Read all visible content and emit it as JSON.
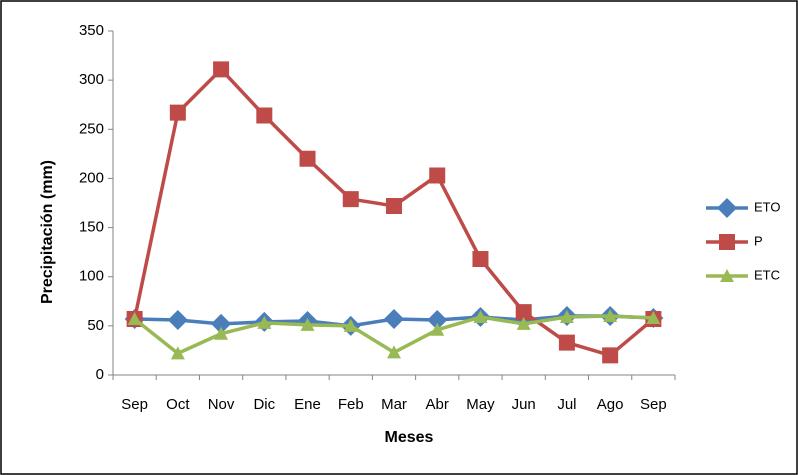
{
  "chart_data": {
    "type": "line",
    "x_label": "Meses",
    "y_label": "Precipitación (mm)",
    "categories": [
      "Sep",
      "Oct",
      "Nov",
      "Dic",
      "Ene",
      "Feb",
      "Mar",
      "Abr",
      "May",
      "Jun",
      "Jul",
      "Ago",
      "Sep"
    ],
    "series": [
      {
        "name": "ETO",
        "color": "#4a7ebb",
        "marker": "diamond",
        "values": [
          57,
          56,
          52,
          54,
          55,
          50,
          57,
          56,
          59,
          56,
          60,
          60,
          58
        ]
      },
      {
        "name": "P",
        "color": "#be4b48",
        "marker": "square",
        "values": [
          57,
          267,
          311,
          264,
          220,
          179,
          172,
          203,
          118,
          64,
          33,
          20,
          57
        ]
      },
      {
        "name": "ETC",
        "color": "#98b954",
        "marker": "triangle",
        "values": [
          57,
          22,
          42,
          53,
          51,
          50,
          23,
          46,
          59,
          52,
          59,
          60,
          58
        ]
      }
    ],
    "ylim": [
      0,
      350
    ],
    "yticks": [
      0,
      50,
      100,
      150,
      200,
      250,
      300,
      350
    ],
    "grid": false,
    "legend": "right"
  }
}
